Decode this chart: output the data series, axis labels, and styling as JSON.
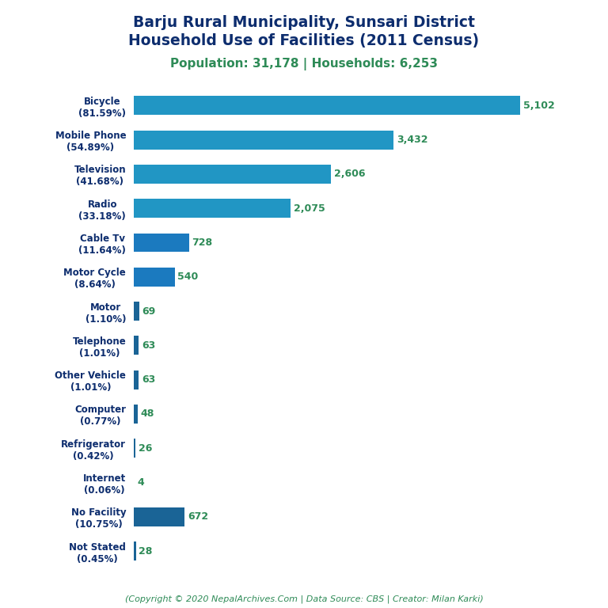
{
  "title_line1": "Barju Rural Municipality, Sunsari District",
  "title_line2": "Household Use of Facilities (2011 Census)",
  "subtitle": "Population: 31,178 | Households: 6,253",
  "footer": "(Copyright © 2020 NepalArchives.Com | Data Source: CBS | Creator: Milan Karki)",
  "categories": [
    "Bicycle\n(81.59%)",
    "Mobile Phone\n(54.89%)",
    "Television\n(41.68%)",
    "Radio\n(33.18%)",
    "Cable Tv\n(11.64%)",
    "Motor Cycle\n(8.64%)",
    "Motor\n(1.10%)",
    "Telephone\n(1.01%)",
    "Other Vehicle\n(1.01%)",
    "Computer\n(0.77%)",
    "Refrigerator\n(0.42%)",
    "Internet\n(0.06%)",
    "No Facility\n(10.75%)",
    "Not Stated\n(0.45%)"
  ],
  "values": [
    5102,
    3432,
    2606,
    2075,
    728,
    540,
    69,
    63,
    63,
    48,
    26,
    4,
    672,
    28
  ],
  "bar_colors": [
    "#2196c4",
    "#2196c4",
    "#2196c4",
    "#2196c4",
    "#1b7abf",
    "#1b7abf",
    "#1a6496",
    "#1a6496",
    "#1a6496",
    "#1a6496",
    "#1a6496",
    "#1a6496",
    "#1a6496",
    "#1a6496"
  ],
  "value_color": "#2e8b57",
  "title_color": "#0d2d6e",
  "subtitle_color": "#2e8b57",
  "footer_color": "#2e8b57",
  "background_color": "#ffffff",
  "xlim": [
    0,
    5700
  ]
}
